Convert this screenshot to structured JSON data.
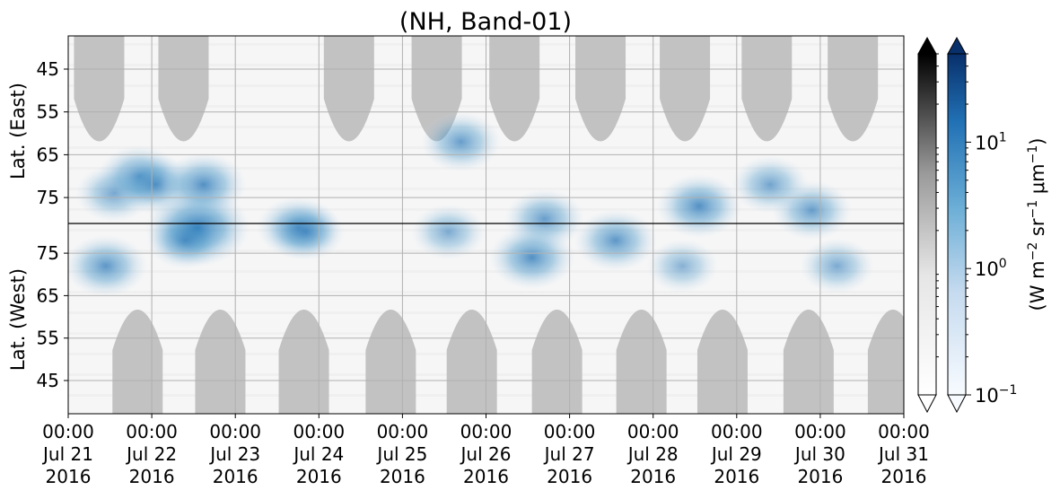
{
  "chart_data": {
    "type": "heatmap",
    "title": "(NH, Band-01)",
    "x_axis": {
      "start": "2016-07-21 00:00",
      "end": "2016-07-31 00:00",
      "ticks": [
        {
          "time": "00:00",
          "date": "Jul 21",
          "year": "2016"
        },
        {
          "time": "00:00",
          "date": "Jul 22",
          "year": "2016"
        },
        {
          "time": "00:00",
          "date": "Jul 23",
          "year": "2016"
        },
        {
          "time": "00:00",
          "date": "Jul 24",
          "year": "2016"
        },
        {
          "time": "00:00",
          "date": "Jul 25",
          "year": "2016"
        },
        {
          "time": "00:00",
          "date": "Jul 26",
          "year": "2016"
        },
        {
          "time": "00:00",
          "date": "Jul 27",
          "year": "2016"
        },
        {
          "time": "00:00",
          "date": "Jul 28",
          "year": "2016"
        },
        {
          "time": "00:00",
          "date": "Jul 29",
          "year": "2016"
        },
        {
          "time": "00:00",
          "date": "Jul 30",
          "year": "2016"
        },
        {
          "time": "00:00",
          "date": "Jul 31",
          "year": "2016"
        }
      ]
    },
    "y_axis_east": {
      "label": "Lat. (East)",
      "ticks": [
        "45",
        "55",
        "65",
        "75"
      ]
    },
    "y_axis_west": {
      "label": "Lat. (West)",
      "ticks": [
        "75",
        "65",
        "55",
        "45"
      ]
    },
    "colorbar": {
      "label": "(W m$^{-2}$ sr$^{-1}$ $\\mu$m$^{-1}$)",
      "label_parts": {
        "a": "(W m",
        "b": "−2",
        "c": " sr",
        "d": "−1",
        "e": " μm",
        "f": "−1",
        "g": ")"
      },
      "scale": "log",
      "range": [
        0.1,
        50
      ],
      "ticks": [
        {
          "base": "10",
          "exp": "1",
          "value": 10
        },
        {
          "base": "10",
          "exp": "0",
          "value": 1
        },
        {
          "base": "10",
          "exp": "−1",
          "value": 0.1
        }
      ],
      "cmaps": [
        "Greys",
        "Blues"
      ]
    },
    "grid": true,
    "colors": {
      "night_mask": "#c2c2c2",
      "background": "#f6f6f6",
      "blue_dark": "#08306b",
      "blue_mid": "#4a98c9",
      "blue_light": "#c6dbef",
      "black": "#000000"
    },
    "night_mask_centers_day": [
      0.37,
      1.38,
      3.36,
      4.41,
      5.34,
      6.37,
      7.38,
      8.36,
      9.39
    ],
    "night_mask_centers_day_west": [
      0.83,
      1.82,
      2.82,
      3.86,
      4.83,
      5.85,
      6.86,
      7.83,
      8.86,
      9.87
    ],
    "blue_blobs": [
      {
        "day": 0.55,
        "lat_e": 74,
        "lat_w": 0,
        "intensity": 0.45
      },
      {
        "day": 0.85,
        "lat_e": 70,
        "lat_w": 0,
        "intensity": 0.55
      },
      {
        "day": 1.05,
        "lat_e": 72,
        "lat_w": 0,
        "intensity": 0.5
      },
      {
        "day": 1.55,
        "lat_e": 82,
        "lat_w": 0,
        "intensity": 0.95
      },
      {
        "day": 1.62,
        "lat_e": 72,
        "lat_w": 0,
        "intensity": 0.6
      },
      {
        "day": 2.75,
        "lat_e": 82,
        "lat_w": 0,
        "intensity": 0.55
      },
      {
        "day": 4.7,
        "lat_e": 62,
        "lat_w": 0,
        "intensity": 0.5
      },
      {
        "day": 5.7,
        "lat_e": 80,
        "lat_w": 0,
        "intensity": 0.5
      },
      {
        "day": 7.55,
        "lat_e": 77,
        "lat_w": 0,
        "intensity": 0.6
      },
      {
        "day": 8.9,
        "lat_e": 78,
        "lat_w": 0,
        "intensity": 0.5
      },
      {
        "day": 8.4,
        "lat_e": 72,
        "lat_w": 0,
        "intensity": 0.45
      },
      {
        "day": 0.45,
        "lat_e": 0,
        "lat_w": 72,
        "intensity": 0.55
      },
      {
        "day": 1.4,
        "lat_e": 0,
        "lat_w": 78,
        "intensity": 0.45
      },
      {
        "day": 2.85,
        "lat_e": 0,
        "lat_w": 80,
        "intensity": 0.45
      },
      {
        "day": 4.55,
        "lat_e": 0,
        "lat_w": 80,
        "intensity": 0.4
      },
      {
        "day": 5.55,
        "lat_e": 0,
        "lat_w": 74,
        "intensity": 0.6
      },
      {
        "day": 6.55,
        "lat_e": 0,
        "lat_w": 78,
        "intensity": 0.55
      },
      {
        "day": 7.35,
        "lat_e": 0,
        "lat_w": 72,
        "intensity": 0.35
      },
      {
        "day": 9.2,
        "lat_e": 0,
        "lat_w": 72,
        "intensity": 0.4
      }
    ]
  }
}
